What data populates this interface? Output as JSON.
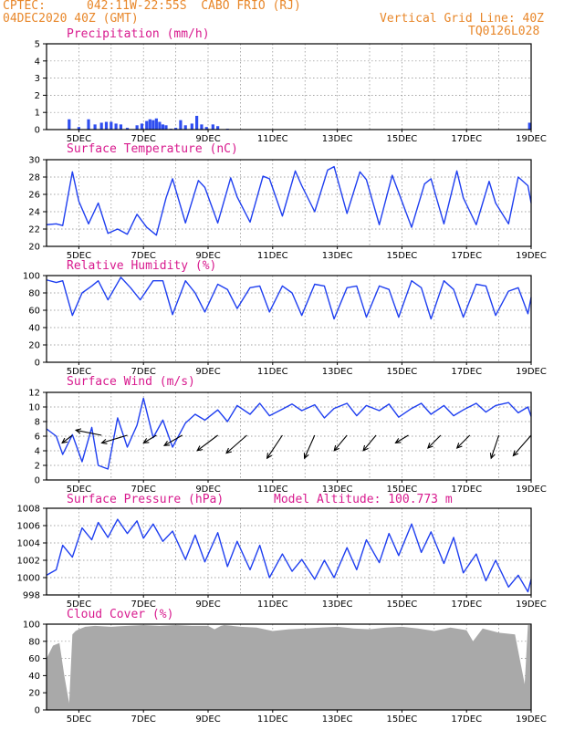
{
  "header": {
    "source": "CPTEC:",
    "location": "042:11W-22:55S  CABO FRIO (RJ)",
    "run": "04DEC2020 40Z (GMT)",
    "grid_note": "Vertical Grid Line: 40Z",
    "code": "TQ0126L028"
  },
  "x_labels": [
    "5DEC",
    "7DEC",
    "9DEC",
    "11DEC",
    "13DEC",
    "15DEC",
    "17DEC",
    "19DEC"
  ],
  "colors": {
    "line": "#1f3ff0",
    "bar": "#2f4ef0",
    "cloud": "#a9a9a9",
    "title": "#d81a8e",
    "header": "#e8872a"
  },
  "chart_data": [
    {
      "type": "bar",
      "title": "Precipitation (mm/h)",
      "ylim": [
        0,
        5
      ],
      "yticks": [
        "0",
        "1",
        "2",
        "3",
        "4",
        "5"
      ],
      "x_days": [
        4.7,
        5.0,
        5.3,
        5.5,
        5.7,
        5.85,
        6.0,
        6.15,
        6.3,
        6.5,
        6.8,
        6.95,
        7.1,
        7.2,
        7.3,
        7.4,
        7.5,
        7.6,
        7.7,
        7.85,
        8.0,
        8.15,
        8.3,
        8.5,
        8.65,
        8.8,
        8.95,
        9.15,
        9.3,
        9.6,
        18.95
      ],
      "values": [
        0.6,
        0.15,
        0.6,
        0.3,
        0.4,
        0.45,
        0.45,
        0.35,
        0.3,
        0.1,
        0.25,
        0.35,
        0.5,
        0.6,
        0.55,
        0.65,
        0.45,
        0.3,
        0.25,
        0.05,
        0.1,
        0.55,
        0.25,
        0.35,
        0.8,
        0.3,
        0.15,
        0.3,
        0.2,
        0.05,
        0.4
      ]
    },
    {
      "type": "line",
      "title": "Surface Temperature (nC)",
      "ylim": [
        20,
        30
      ],
      "yticks": [
        "20",
        "22",
        "24",
        "26",
        "28",
        "30"
      ],
      "x_days": [
        4.0,
        4.3,
        4.5,
        4.8,
        5.0,
        5.3,
        5.6,
        5.9,
        6.2,
        6.5,
        6.8,
        7.1,
        7.4,
        7.7,
        7.9,
        8.3,
        8.7,
        8.9,
        9.3,
        9.7,
        9.9,
        10.3,
        10.7,
        10.9,
        11.3,
        11.7,
        11.9,
        12.3,
        12.7,
        12.9,
        13.3,
        13.7,
        13.9,
        14.3,
        14.7,
        14.9,
        15.3,
        15.7,
        15.9,
        16.3,
        16.7,
        16.9,
        17.3,
        17.7,
        17.9,
        18.3,
        18.6,
        18.9,
        19.0
      ],
      "values": [
        22.5,
        22.6,
        22.4,
        28.6,
        25.2,
        22.6,
        25.0,
        21.5,
        22.0,
        21.4,
        23.7,
        22.2,
        21.3,
        25.6,
        27.8,
        22.7,
        27.6,
        26.8,
        22.7,
        27.9,
        25.7,
        22.8,
        28.1,
        27.8,
        23.5,
        28.7,
        27.0,
        24.0,
        28.8,
        29.2,
        23.8,
        28.6,
        27.7,
        22.5,
        28.2,
        26.2,
        22.2,
        27.2,
        27.8,
        22.6,
        28.7,
        25.6,
        22.5,
        27.5,
        25.0,
        22.6,
        28.0,
        27.0,
        25.0
      ]
    },
    {
      "type": "line",
      "title": "Relative Humidity (%)",
      "ylim": [
        0,
        100
      ],
      "yticks": [
        "0",
        "20",
        "40",
        "60",
        "80",
        "100"
      ],
      "x_days": [
        4.0,
        4.3,
        4.5,
        4.8,
        5.1,
        5.4,
        5.6,
        5.9,
        6.3,
        6.6,
        6.9,
        7.3,
        7.6,
        7.9,
        8.3,
        8.6,
        8.9,
        9.3,
        9.6,
        9.9,
        10.3,
        10.6,
        10.9,
        11.3,
        11.6,
        11.9,
        12.3,
        12.6,
        12.9,
        13.3,
        13.6,
        13.9,
        14.3,
        14.6,
        14.9,
        15.3,
        15.6,
        15.9,
        16.3,
        16.6,
        16.9,
        17.3,
        17.6,
        17.9,
        18.3,
        18.6,
        18.9,
        19.0
      ],
      "values": [
        95,
        92,
        94,
        54,
        80,
        88,
        94,
        72,
        98,
        86,
        72,
        94,
        94,
        55,
        94,
        80,
        58,
        90,
        84,
        62,
        86,
        88,
        58,
        88,
        80,
        54,
        90,
        88,
        50,
        86,
        88,
        52,
        88,
        84,
        52,
        94,
        86,
        50,
        94,
        84,
        52,
        90,
        88,
        54,
        82,
        86,
        56,
        75
      ]
    },
    {
      "type": "line",
      "title": "Surface Wind (m/s)",
      "ylim": [
        0,
        12
      ],
      "yticks": [
        "0",
        "2",
        "4",
        "6",
        "8",
        "10",
        "12"
      ],
      "x_days": [
        4.0,
        4.3,
        4.5,
        4.8,
        5.1,
        5.4,
        5.6,
        5.9,
        6.2,
        6.5,
        6.8,
        7.0,
        7.3,
        7.6,
        7.9,
        8.3,
        8.6,
        8.9,
        9.3,
        9.6,
        9.9,
        10.3,
        10.6,
        10.9,
        11.3,
        11.6,
        11.9,
        12.3,
        12.6,
        12.9,
        13.3,
        13.6,
        13.9,
        14.3,
        14.6,
        14.9,
        15.3,
        15.6,
        15.9,
        16.3,
        16.6,
        16.9,
        17.3,
        17.6,
        17.9,
        18.3,
        18.6,
        18.9,
        19.0
      ],
      "values": [
        7.0,
        6.0,
        3.5,
        6.2,
        2.5,
        7.2,
        2.0,
        1.5,
        8.5,
        4.5,
        7.5,
        11.2,
        5.8,
        8.2,
        4.5,
        7.8,
        9.0,
        8.2,
        9.6,
        8.0,
        10.2,
        9.0,
        10.5,
        8.8,
        9.7,
        10.4,
        9.5,
        10.3,
        8.5,
        9.8,
        10.5,
        8.8,
        10.2,
        9.5,
        10.4,
        8.6,
        9.8,
        10.5,
        9.0,
        10.2,
        8.8,
        9.6,
        10.5,
        9.3,
        10.2,
        10.6,
        9.2,
        10.0,
        8.7
      ],
      "arrows": [
        {
          "x_day": 4.8,
          "u": 0.4,
          "v": 0.3
        },
        {
          "x_day": 5.7,
          "u": 1.0,
          "v": -0.2
        },
        {
          "x_day": 6.5,
          "u": 1.0,
          "v": 0.3
        },
        {
          "x_day": 7.4,
          "u": 0.5,
          "v": 0.3
        },
        {
          "x_day": 8.2,
          "u": 0.7,
          "v": 0.4
        },
        {
          "x_day": 9.3,
          "u": 0.8,
          "v": 0.6
        },
        {
          "x_day": 10.2,
          "u": 0.8,
          "v": 0.7
        },
        {
          "x_day": 11.3,
          "u": 0.6,
          "v": 0.9
        },
        {
          "x_day": 12.3,
          "u": 0.4,
          "v": 0.9
        },
        {
          "x_day": 13.3,
          "u": 0.5,
          "v": 0.6
        },
        {
          "x_day": 14.2,
          "u": 0.5,
          "v": 0.6
        },
        {
          "x_day": 15.2,
          "u": 0.5,
          "v": 0.3
        },
        {
          "x_day": 16.2,
          "u": 0.5,
          "v": 0.5
        },
        {
          "x_day": 17.1,
          "u": 0.5,
          "v": 0.5
        },
        {
          "x_day": 18.0,
          "u": 0.3,
          "v": 0.9
        },
        {
          "x_day": 19.0,
          "u": 0.7,
          "v": 0.8
        }
      ]
    },
    {
      "type": "line",
      "title": "Surface Pressure (hPa)",
      "subtitle": "Model Altitude: 100.773 m",
      "ylim": [
        997,
        1008
      ],
      "yticks": [
        "998",
        "1000",
        "1002",
        "1004",
        "1006",
        "1008"
      ],
      "x_days": [
        4.0,
        4.3,
        4.5,
        4.8,
        5.1,
        5.4,
        5.6,
        5.9,
        6.2,
        6.5,
        6.8,
        7.0,
        7.3,
        7.6,
        7.9,
        8.3,
        8.6,
        8.9,
        9.3,
        9.6,
        9.9,
        10.3,
        10.6,
        10.9,
        11.3,
        11.6,
        11.9,
        12.3,
        12.6,
        12.9,
        13.3,
        13.6,
        13.9,
        14.3,
        14.6,
        14.9,
        15.3,
        15.6,
        15.9,
        16.3,
        16.6,
        16.9,
        17.3,
        17.6,
        17.9,
        18.3,
        18.6,
        18.9,
        19.0
      ],
      "values": [
        999.5,
        1000.2,
        1003.3,
        1001.8,
        1005.5,
        1004.0,
        1006.2,
        1004.3,
        1006.6,
        1004.8,
        1006.4,
        1004.2,
        1006.0,
        1003.8,
        1005.1,
        1001.5,
        1004.6,
        1001.2,
        1004.9,
        1000.6,
        1003.8,
        1000.2,
        1003.3,
        999.2,
        1002.2,
        1000.0,
        1001.5,
        999.0,
        1001.4,
        999.2,
        1003.0,
        1000.2,
        1004.0,
        1001.1,
        1004.8,
        1002.0,
        1006.0,
        1002.4,
        1005.0,
        1001.0,
        1004.3,
        999.8,
        1002.2,
        998.8,
        1001.4,
        998.0,
        999.5,
        997.4,
        999.0
      ]
    },
    {
      "type": "area",
      "title": "Cloud Cover (%)",
      "ylim": [
        0,
        100
      ],
      "yticks": [
        "0",
        "20",
        "40",
        "60",
        "80",
        "100"
      ],
      "x_days": [
        4.0,
        4.2,
        4.4,
        4.55,
        4.7,
        4.8,
        4.9,
        5.0,
        5.2,
        5.5,
        6.0,
        6.5,
        7.0,
        7.5,
        8.0,
        8.5,
        9.0,
        9.2,
        9.4,
        9.5,
        10.0,
        10.5,
        11.0,
        11.5,
        12.0,
        12.5,
        13.0,
        13.5,
        14.0,
        14.5,
        15.0,
        15.5,
        16.0,
        16.5,
        17.0,
        17.2,
        17.5,
        18.0,
        18.5,
        18.8,
        18.9,
        19.0
      ],
      "values": [
        60,
        75,
        78,
        40,
        8,
        88,
        92,
        94,
        97,
        98,
        97,
        98,
        99,
        98,
        99,
        98,
        98,
        94,
        98,
        99,
        97,
        96,
        92,
        94,
        95,
        96,
        97,
        95,
        94,
        96,
        97,
        95,
        92,
        96,
        93,
        80,
        95,
        90,
        88,
        30,
        99,
        99
      ]
    }
  ]
}
